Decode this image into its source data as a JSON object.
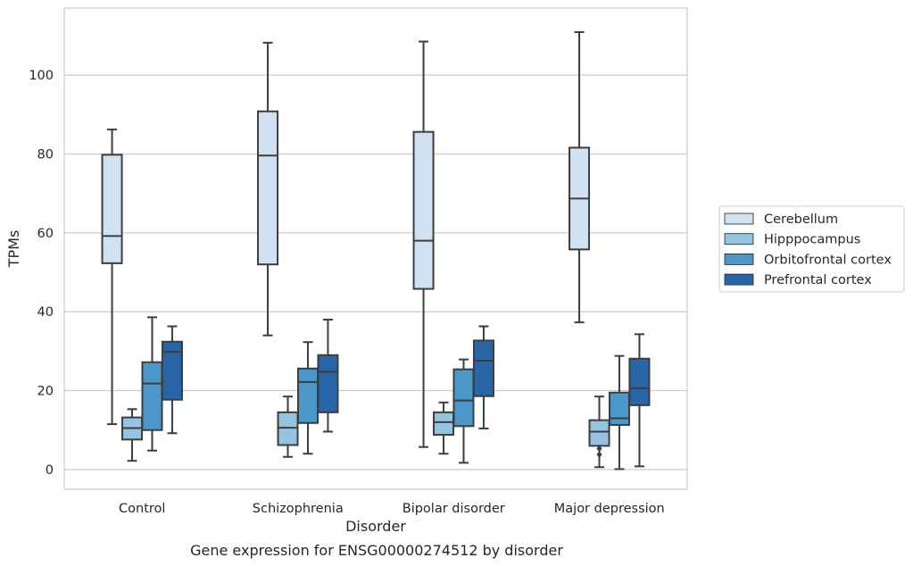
{
  "chart_data": {
    "type": "box",
    "caption": "Gene expression for ENSG00000274512 by disorder",
    "xlabel": "Disorder",
    "ylabel": "TPMs",
    "ylim": [
      -5,
      117
    ],
    "yticks": [
      0,
      20,
      40,
      60,
      80,
      100
    ],
    "grid": "horizontal",
    "legend_position": "right",
    "categories": [
      "Control",
      "Schizophrenia",
      "Bipolar disorder",
      "Major depression"
    ],
    "series": [
      {
        "name": "Cerebellum",
        "color": "#d0e1f2",
        "boxes": [
          {
            "whisker_low": 11.5,
            "q1": 52.3,
            "median": 59.2,
            "q3": 79.8,
            "whisker_high": 86.2,
            "outliers": []
          },
          {
            "whisker_low": 34.0,
            "q1": 52.0,
            "median": 79.6,
            "q3": 90.8,
            "whisker_high": 108.2,
            "outliers": []
          },
          {
            "whisker_low": 5.7,
            "q1": 45.8,
            "median": 58.0,
            "q3": 85.6,
            "whisker_high": 108.5,
            "outliers": []
          },
          {
            "whisker_low": 37.3,
            "q1": 55.8,
            "median": 68.7,
            "q3": 81.6,
            "whisker_high": 110.9,
            "outliers": []
          }
        ]
      },
      {
        "name": "Hipppocampus",
        "color": "#94c4df",
        "boxes": [
          {
            "whisker_low": 2.2,
            "q1": 7.6,
            "median": 10.5,
            "q3": 13.2,
            "whisker_high": 15.3,
            "outliers": []
          },
          {
            "whisker_low": 3.2,
            "q1": 6.2,
            "median": 10.6,
            "q3": 14.5,
            "whisker_high": 18.5,
            "outliers": []
          },
          {
            "whisker_low": 4.0,
            "q1": 8.8,
            "median": 12.0,
            "q3": 14.5,
            "whisker_high": 17.0,
            "outliers": []
          },
          {
            "whisker_low": 0.6,
            "q1": 6.0,
            "median": 9.6,
            "q3": 12.5,
            "whisker_high": 18.5,
            "outliers": [
              3.8,
              5.3
            ]
          }
        ]
      },
      {
        "name": "Orbitofrontal cortex",
        "color": "#4a98c9",
        "boxes": [
          {
            "whisker_low": 4.8,
            "q1": 10.0,
            "median": 21.8,
            "q3": 27.2,
            "whisker_high": 38.6,
            "outliers": []
          },
          {
            "whisker_low": 4.0,
            "q1": 11.8,
            "median": 22.2,
            "q3": 25.6,
            "whisker_high": 32.3,
            "outliers": []
          },
          {
            "whisker_low": 1.7,
            "q1": 11.0,
            "median": 17.5,
            "q3": 25.4,
            "whisker_high": 27.9,
            "outliers": []
          },
          {
            "whisker_low": 0.1,
            "q1": 11.3,
            "median": 13.0,
            "q3": 19.5,
            "whisker_high": 28.8,
            "outliers": []
          }
        ]
      },
      {
        "name": "Prefrontal cortex",
        "color": "#2866a8",
        "boxes": [
          {
            "whisker_low": 9.2,
            "q1": 17.7,
            "median": 29.8,
            "q3": 32.4,
            "whisker_high": 36.3,
            "outliers": []
          },
          {
            "whisker_low": 9.6,
            "q1": 14.5,
            "median": 24.8,
            "q3": 29.0,
            "whisker_high": 38.0,
            "outliers": []
          },
          {
            "whisker_low": 10.4,
            "q1": 18.6,
            "median": 27.6,
            "q3": 32.7,
            "whisker_high": 36.3,
            "outliers": []
          },
          {
            "whisker_low": 0.8,
            "q1": 16.3,
            "median": 20.6,
            "q3": 28.1,
            "whisker_high": 34.3,
            "outliers": []
          }
        ]
      }
    ]
  }
}
